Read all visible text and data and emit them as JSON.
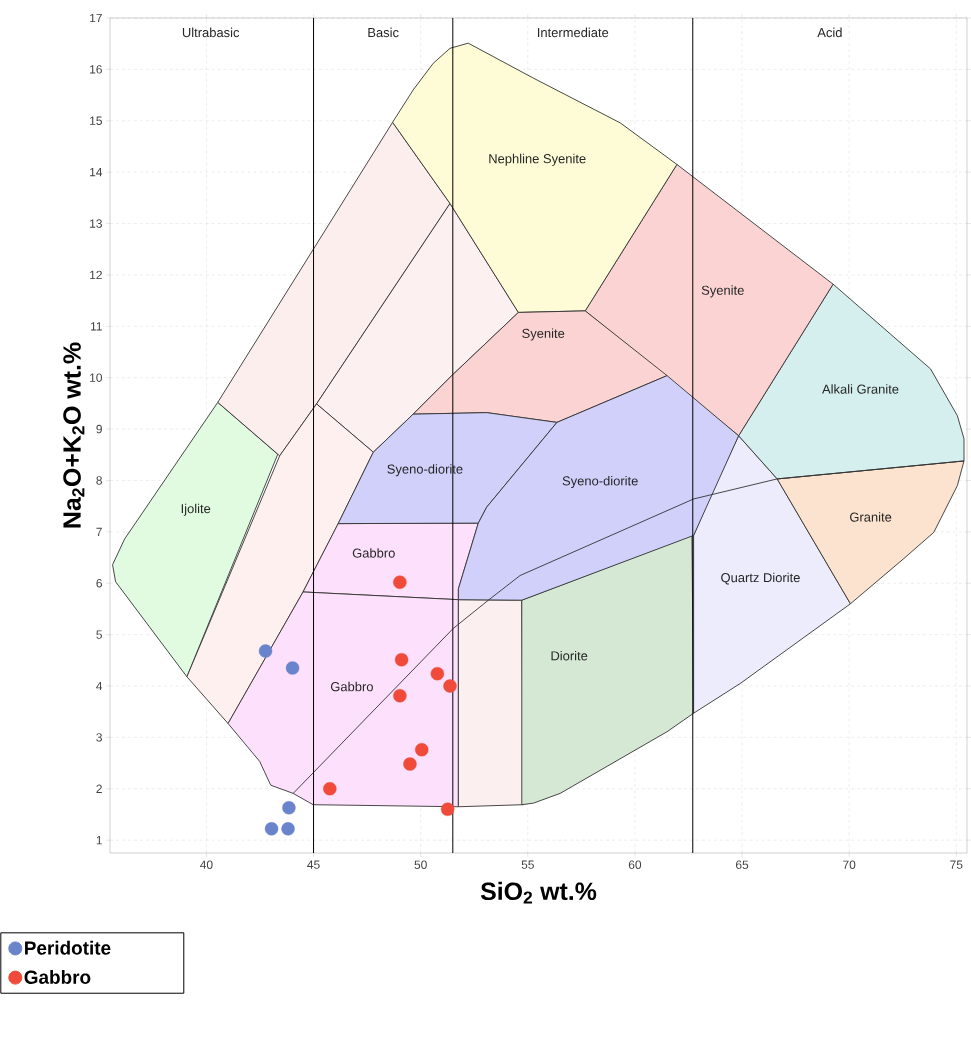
{
  "chart_data": {
    "type": "scatter",
    "xlabel": "SiO$_{2}$ wt.%",
    "ylabel": "Na$_{2}$O+K$_{2}$O wt.%",
    "xlim": [
      35.5,
      75.5
    ],
    "ylim": [
      0.75,
      17
    ],
    "xticks": [
      40,
      45,
      50,
      55,
      60,
      65,
      70,
      75
    ],
    "yticks": [
      1,
      2,
      3,
      4,
      5,
      6,
      7,
      8,
      9,
      10,
      11,
      12,
      13,
      14,
      15,
      16,
      17
    ],
    "grid": true,
    "legend": "bottom left",
    "series": [
      {
        "type": "area",
        "color": "#e0fbe0",
        "x": [
          40.53,
          43.33,
          39.09,
          35.76,
          35.62,
          36.18
        ],
        "values": [
          9.52,
          8.51,
          4.18,
          6.03,
          6.36,
          6.86
        ]
      },
      {
        "type": "area",
        "color": "#fdeeee",
        "x": [
          40.53,
          48.69,
          51.37,
          45.14,
          43.42
        ],
        "values": [
          9.52,
          14.97,
          13.39,
          9.49,
          8.48
        ]
      },
      {
        "type": "area",
        "color": "#fdf0f0",
        "x": [
          51.37,
          54.56,
          51.45,
          49.65,
          47.79,
          45.14
        ],
        "values": [
          13.39,
          11.27,
          10.04,
          9.29,
          8.55,
          9.49
        ]
      },
      {
        "type": "area",
        "color": "#fdf0ee",
        "x": [
          43.42,
          45.14,
          47.79,
          46.15,
          44.51,
          41.01,
          39.09
        ],
        "values": [
          8.48,
          9.49,
          8.55,
          7.16,
          5.83,
          3.27,
          4.18
        ]
      },
      {
        "type": "area",
        "color": "#fde0fb",
        "x": [
          46.15,
          52.69,
          51.76,
          51.76,
          44.51
        ],
        "values": [
          7.16,
          7.17,
          5.89,
          5.68,
          5.83
        ]
      },
      {
        "type": "area",
        "color": "#fde0fb",
        "x": [
          44.51,
          51.76,
          51.76,
          44.98,
          44.05,
          43.0,
          42.49,
          41.01
        ],
        "values": [
          5.83,
          5.68,
          1.65,
          1.69,
          1.91,
          2.07,
          2.53,
          3.27
        ]
      },
      {
        "type": "area",
        "color": "#fbf0ef",
        "x": [
          51.76,
          54.72,
          54.79,
          51.76
        ],
        "values": [
          5.68,
          5.67,
          1.69,
          1.65
        ]
      },
      {
        "type": "area",
        "color": "#d5e8d4",
        "x": [
          54.72,
          62.66,
          62.74,
          61.5,
          56.51,
          55.26,
          54.72
        ],
        "values": [
          5.67,
          6.93,
          3.47,
          3.11,
          1.91,
          1.72,
          1.69
        ]
      },
      {
        "type": "area",
        "color": "#ececfc",
        "x": [
          62.74,
          62.74,
          63.6,
          64.84,
          66.64,
          70.06,
          64.92
        ],
        "values": [
          3.47,
          6.93,
          7.77,
          8.87,
          8.03,
          5.6,
          4.05
        ]
      },
      {
        "type": "area",
        "color": "#fbe3cf",
        "x": [
          66.64,
          75.36,
          75.05,
          73.95,
          72.55,
          70.06
        ],
        "values": [
          8.03,
          8.38,
          7.9,
          6.99,
          6.48,
          5.6
        ]
      },
      {
        "type": "area",
        "color": "#d5eeee",
        "x": [
          69.25,
          73.8,
          75.05,
          75.36,
          75.36,
          66.64,
          64.84
        ],
        "values": [
          11.82,
          10.17,
          9.26,
          8.81,
          8.38,
          8.03,
          8.87
        ]
      },
      {
        "type": "area",
        "color": "#fbd3d3",
        "x": [
          61.96,
          69.25,
          64.84,
          57.68
        ],
        "values": [
          14.15,
          11.82,
          8.87,
          11.3
        ]
      },
      {
        "type": "area",
        "color": "#fdfcd6",
        "x": [
          48.69,
          49.65,
          50.59,
          51.37,
          52.22,
          55.26,
          59.31,
          61.96,
          57.68,
          54.56,
          51.37
        ],
        "values": [
          14.97,
          15.6,
          16.12,
          16.41,
          16.51,
          15.83,
          14.96,
          14.15,
          11.3,
          11.27,
          13.39
        ]
      },
      {
        "type": "area",
        "color": "#fbd3d3",
        "x": [
          54.56,
          57.68,
          61.5,
          56.36,
          53.08,
          49.65,
          51.45
        ],
        "values": [
          11.27,
          11.3,
          10.04,
          9.13,
          9.32,
          9.29,
          10.04
        ]
      },
      {
        "type": "area",
        "color": "#d0d0fb",
        "x": [
          49.65,
          53.08,
          56.36,
          53.08,
          52.69,
          46.15,
          47.79
        ],
        "values": [
          9.29,
          9.32,
          9.13,
          7.48,
          7.17,
          7.16,
          8.55
        ]
      },
      {
        "type": "area",
        "color": "#d0d0fb",
        "x": [
          56.36,
          61.5,
          64.84,
          62.74,
          54.72,
          51.76,
          51.76,
          52.69,
          53.08
        ],
        "values": [
          9.13,
          10.04,
          8.87,
          6.93,
          5.67,
          5.68,
          5.89,
          7.17,
          7.48
        ]
      },
      {
        "type": "line",
        "color": "#333333",
        "x": [
          44.05,
          51.52,
          53.16,
          54.64,
          62.74,
          66.64,
          75.36
        ],
        "values": [
          1.91,
          5.12,
          5.67,
          6.15,
          7.64,
          8.03,
          8.38
        ]
      },
      {
        "name": "Peridotite",
        "marker": "circle",
        "color": "#6a84cc",
        "x": [
          42.76,
          44.02,
          43.85,
          43.04,
          43.81
        ],
        "values": [
          4.68,
          4.35,
          1.63,
          1.22,
          1.22
        ]
      },
      {
        "name": "Gabbro",
        "marker": "circle",
        "color": "#f04b3a",
        "x": [
          49.03,
          49.11,
          50.78,
          51.37,
          49.03,
          50.05,
          49.5,
          45.76,
          51.26
        ],
        "values": [
          6.02,
          4.51,
          4.24,
          4.0,
          3.81,
          2.76,
          2.48,
          2.0,
          1.6
        ]
      }
    ],
    "ref_lines": [
      {
        "axis": "x",
        "value": 45
      },
      {
        "axis": "x",
        "value": 51.5
      },
      {
        "axis": "x",
        "value": 62.7
      }
    ],
    "annotations": [
      "Ultrabasic",
      "Basic",
      "Intermediate",
      "Acid",
      "Nephline Syenite",
      "Syenite",
      "Syenite",
      "Alkali Granite",
      "Syeno-diorite",
      "Syeno-diorite",
      "Ijolite",
      "Granite",
      "Gabbro",
      "Quartz Diorite",
      "Diorite",
      "Gabbro"
    ]
  }
}
